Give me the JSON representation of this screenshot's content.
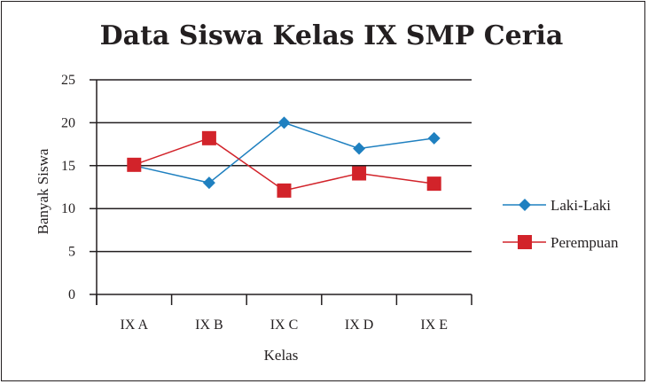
{
  "chart_data": {
    "type": "line",
    "title": "Data Siswa Kelas IX SMP Ceria",
    "xlabel": "Kelas",
    "ylabel": "Banyak Siswa",
    "categories": [
      "IX A",
      "IX B",
      "IX C",
      "IX D",
      "IX E"
    ],
    "yticks": [
      "0",
      "5",
      "10",
      "15",
      "20",
      "25"
    ],
    "ylim": [
      0,
      25
    ],
    "grid": "horizontal",
    "legend_position": "right",
    "series": [
      {
        "name": "Laki-Laki",
        "values": [
          15,
          13,
          20,
          17,
          18.2
        ],
        "color": "#1f80c0",
        "marker": "diamond"
      },
      {
        "name": "Perempuan",
        "values": [
          15.1,
          18.2,
          12.1,
          14.1,
          12.9
        ],
        "color": "#d2232a",
        "marker": "square"
      }
    ]
  }
}
